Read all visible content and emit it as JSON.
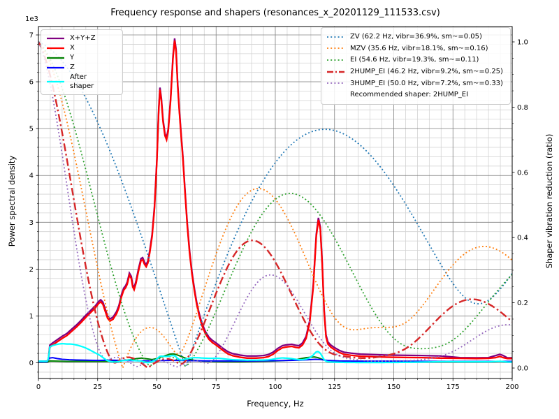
{
  "title": "Frequency response and shapers (resonances_x_20201129_111533.csv)",
  "axes": {
    "x": {
      "label": "Frequency, Hz",
      "min": 0,
      "max": 200,
      "ticks": [
        0,
        25,
        50,
        75,
        100,
        125,
        150,
        175,
        200
      ],
      "minor_step": 5
    },
    "y_left": {
      "label": "Power spectral density",
      "offset_text": "1e3",
      "ticks": [
        0,
        1,
        2,
        3,
        4,
        5,
        6,
        7
      ],
      "minor_step": 0.2,
      "units": "1e3"
    },
    "y_right": {
      "label": "Shaper vibration reduction (ratio)",
      "tick_labels": [
        "0.0",
        "0.2",
        "0.4",
        "0.6",
        "0.8",
        "1.0"
      ],
      "tick_values": [
        0,
        0.2,
        0.4,
        0.6,
        0.8,
        1.0
      ],
      "minor_step": 0.05
    }
  },
  "chart_data": {
    "type": "line",
    "xlabel": "Frequency, Hz",
    "ylabel_left": "Power spectral density",
    "ylabel_right": "Shaper vibration reduction (ratio)",
    "x_range": [
      0,
      200
    ],
    "y_left_range_1e3": [
      -0.33,
      7.25
    ],
    "y_right_range": [
      -0.035,
      1.057
    ],
    "grid": "major grey + minor lightgrey",
    "points_units": "[Hz, PSD x 1e3]",
    "psd_series": [
      {
        "name": "X+Y+Z",
        "label": "X+Y+Z",
        "color": "purple",
        "derived": "sum of axes, overlaps X slightly above"
      },
      {
        "name": "X",
        "label": "X",
        "color": "red",
        "points": [
          [
            0,
            0.02
          ],
          [
            3.6,
            0.02
          ],
          [
            4.2,
            0.06
          ],
          [
            4.8,
            0.33
          ],
          [
            6,
            0.38
          ],
          [
            8,
            0.45
          ],
          [
            10,
            0.52
          ],
          [
            12,
            0.58
          ],
          [
            14,
            0.67
          ],
          [
            16,
            0.76
          ],
          [
            18,
            0.86
          ],
          [
            20,
            0.97
          ],
          [
            22,
            1.07
          ],
          [
            24,
            1.17
          ],
          [
            25.5,
            1.27
          ],
          [
            26.3,
            1.3
          ],
          [
            27.2,
            1.25
          ],
          [
            28.2,
            1.1
          ],
          [
            29.2,
            0.95
          ],
          [
            30.2,
            0.89
          ],
          [
            31.5,
            0.93
          ],
          [
            33,
            1.05
          ],
          [
            34,
            1.18
          ],
          [
            35,
            1.4
          ],
          [
            36,
            1.55
          ],
          [
            36.8,
            1.6
          ],
          [
            37.5,
            1.68
          ],
          [
            38.4,
            1.87
          ],
          [
            39.2,
            1.8
          ],
          [
            39.8,
            1.62
          ],
          [
            40.4,
            1.56
          ],
          [
            41.2,
            1.7
          ],
          [
            42.2,
            1.95
          ],
          [
            43.3,
            2.18
          ],
          [
            44,
            2.2
          ],
          [
            44.8,
            2.1
          ],
          [
            45.5,
            2.05
          ],
          [
            46.2,
            2.13
          ],
          [
            47,
            2.35
          ],
          [
            48,
            2.7
          ],
          [
            49,
            3.3
          ],
          [
            50,
            4.3
          ],
          [
            50.8,
            5.4
          ],
          [
            51.3,
            5.83
          ],
          [
            51.9,
            5.6
          ],
          [
            52.6,
            5.15
          ],
          [
            53.4,
            4.85
          ],
          [
            54.1,
            4.76
          ],
          [
            54.8,
            4.95
          ],
          [
            55.8,
            5.6
          ],
          [
            56.8,
            6.5
          ],
          [
            57.5,
            6.88
          ],
          [
            58.1,
            6.65
          ],
          [
            58.8,
            5.9
          ],
          [
            59.5,
            5.35
          ],
          [
            60.3,
            4.8
          ],
          [
            61,
            4.35
          ],
          [
            61.8,
            3.7
          ],
          [
            62.8,
            2.95
          ],
          [
            63.8,
            2.35
          ],
          [
            64.8,
            1.9
          ],
          [
            65.8,
            1.55
          ],
          [
            66.8,
            1.25
          ],
          [
            67.8,
            1.02
          ],
          [
            69,
            0.8
          ],
          [
            70.5,
            0.62
          ],
          [
            72,
            0.5
          ],
          [
            73.5,
            0.43
          ],
          [
            75,
            0.38
          ],
          [
            76.5,
            0.32
          ],
          [
            78,
            0.26
          ],
          [
            80,
            0.19
          ],
          [
            82,
            0.15
          ],
          [
            85,
            0.12
          ],
          [
            88,
            0.1
          ],
          [
            92,
            0.1
          ],
          [
            95,
            0.11
          ],
          [
            97,
            0.13
          ],
          [
            99,
            0.18
          ],
          [
            101,
            0.26
          ],
          [
            103,
            0.32
          ],
          [
            105,
            0.34
          ],
          [
            107,
            0.35
          ],
          [
            108.5,
            0.33
          ],
          [
            110,
            0.32
          ],
          [
            111.5,
            0.38
          ],
          [
            113,
            0.52
          ],
          [
            114.5,
            0.85
          ],
          [
            116,
            1.6
          ],
          [
            117.3,
            2.7
          ],
          [
            118.2,
            3.05
          ],
          [
            119,
            2.85
          ],
          [
            119.8,
            2.1
          ],
          [
            120.6,
            1.1
          ],
          [
            121.4,
            0.55
          ],
          [
            122.2,
            0.4
          ],
          [
            123.5,
            0.33
          ],
          [
            125,
            0.28
          ],
          [
            127,
            0.22
          ],
          [
            129,
            0.18
          ],
          [
            132,
            0.16
          ],
          [
            136,
            0.14
          ],
          [
            141,
            0.13
          ],
          [
            147,
            0.12
          ],
          [
            154,
            0.115
          ],
          [
            162,
            0.11
          ],
          [
            170,
            0.1
          ],
          [
            178,
            0.095
          ],
          [
            185,
            0.09
          ],
          [
            190,
            0.095
          ],
          [
            193,
            0.11
          ],
          [
            194.8,
            0.135
          ],
          [
            196.2,
            0.11
          ],
          [
            198,
            0.09
          ],
          [
            200,
            0.09
          ]
        ]
      },
      {
        "name": "Y",
        "label": "Y",
        "color": "green",
        "points": [
          [
            0,
            0.015
          ],
          [
            3.6,
            0.015
          ],
          [
            4.8,
            0.04
          ],
          [
            8,
            0.035
          ],
          [
            12,
            0.03
          ],
          [
            16,
            0.03
          ],
          [
            22,
            0.03
          ],
          [
            28,
            0.03
          ],
          [
            33,
            0.035
          ],
          [
            36,
            0.05
          ],
          [
            39,
            0.07
          ],
          [
            41.5,
            0.09
          ],
          [
            43.5,
            0.1
          ],
          [
            45,
            0.09
          ],
          [
            46.5,
            0.08
          ],
          [
            48,
            0.07
          ],
          [
            50,
            0.09
          ],
          [
            52,
            0.13
          ],
          [
            54,
            0.16
          ],
          [
            55.5,
            0.185
          ],
          [
            57,
            0.19
          ],
          [
            58.5,
            0.17
          ],
          [
            60,
            0.14
          ],
          [
            62,
            0.1
          ],
          [
            64,
            0.07
          ],
          [
            66,
            0.05
          ],
          [
            68,
            0.04
          ],
          [
            72,
            0.03
          ],
          [
            78,
            0.025
          ],
          [
            85,
            0.025
          ],
          [
            92,
            0.03
          ],
          [
            98,
            0.035
          ],
          [
            103,
            0.045
          ],
          [
            106,
            0.055
          ],
          [
            109,
            0.07
          ],
          [
            111,
            0.09
          ],
          [
            113,
            0.11
          ],
          [
            115,
            0.12
          ],
          [
            116.5,
            0.125
          ],
          [
            118,
            0.11
          ],
          [
            119.5,
            0.08
          ],
          [
            121,
            0.05
          ],
          [
            123,
            0.035
          ],
          [
            126,
            0.03
          ],
          [
            132,
            0.025
          ],
          [
            145,
            0.02
          ],
          [
            165,
            0.02
          ],
          [
            185,
            0.02
          ],
          [
            192,
            0.025
          ],
          [
            195,
            0.03
          ],
          [
            198,
            0.025
          ],
          [
            200,
            0.025
          ]
        ]
      },
      {
        "name": "Z",
        "label": "Z",
        "color": "blue",
        "points": [
          [
            0,
            0.02
          ],
          [
            3.6,
            0.02
          ],
          [
            4.6,
            0.1
          ],
          [
            6,
            0.11
          ],
          [
            8,
            0.09
          ],
          [
            10,
            0.075
          ],
          [
            13,
            0.065
          ],
          [
            16,
            0.06
          ],
          [
            20,
            0.055
          ],
          [
            25,
            0.05
          ],
          [
            30,
            0.055
          ],
          [
            35,
            0.05
          ],
          [
            40,
            0.045
          ],
          [
            45,
            0.04
          ],
          [
            50,
            0.045
          ],
          [
            55,
            0.05
          ],
          [
            60,
            0.05
          ],
          [
            65,
            0.045
          ],
          [
            72,
            0.04
          ],
          [
            80,
            0.04
          ],
          [
            90,
            0.04
          ],
          [
            100,
            0.045
          ],
          [
            106,
            0.05
          ],
          [
            110,
            0.055
          ],
          [
            114,
            0.065
          ],
          [
            117,
            0.075
          ],
          [
            119,
            0.07
          ],
          [
            122,
            0.05
          ],
          [
            127,
            0.04
          ],
          [
            135,
            0.035
          ],
          [
            150,
            0.035
          ],
          [
            170,
            0.03
          ],
          [
            190,
            0.03
          ],
          [
            200,
            0.03
          ]
        ]
      },
      {
        "name": "After shaper",
        "label": "After\nshaper",
        "color": "cyan",
        "derived": "psd sum multiplied by recommended shaper response"
      }
    ],
    "shapers": [
      {
        "name": "ZV",
        "freq": 62.2,
        "vibr_pct": 36.9,
        "smoothing": 0.05,
        "legend": "ZV (62.2 Hz, vibr=36.9%, sm~=0.05)",
        "color": "#1f77b4",
        "style": "dotted"
      },
      {
        "name": "MZV",
        "freq": 35.6,
        "vibr_pct": 18.1,
        "smoothing": 0.16,
        "legend": "MZV (35.6 Hz, vibr=18.1%, sm~=0.16)",
        "color": "#ff7f0e",
        "style": "dotted"
      },
      {
        "name": "EI",
        "freq": 54.6,
        "vibr_pct": 19.3,
        "smoothing": 0.11,
        "legend": "EI (54.6 Hz, vibr=19.3%, sm~=0.11)",
        "color": "#2ca02c",
        "style": "dotted"
      },
      {
        "name": "2HUMP_EI",
        "freq": 46.2,
        "vibr_pct": 9.2,
        "smoothing": 0.25,
        "legend": "2HUMP_EI (46.2 Hz, vibr=9.2%, sm~=0.25)",
        "color": "#d62728",
        "style": "dashdot"
      },
      {
        "name": "3HUMP_EI",
        "freq": 50.0,
        "vibr_pct": 7.2,
        "smoothing": 0.33,
        "legend": "3HUMP_EI (50.0 Hz, vibr=7.2%, sm~=0.33)",
        "color": "#9467bd",
        "style": "dotted"
      }
    ],
    "recommended": "2HUMP_EI",
    "recommended_label": "Recommended shaper: 2HUMP_EI"
  }
}
